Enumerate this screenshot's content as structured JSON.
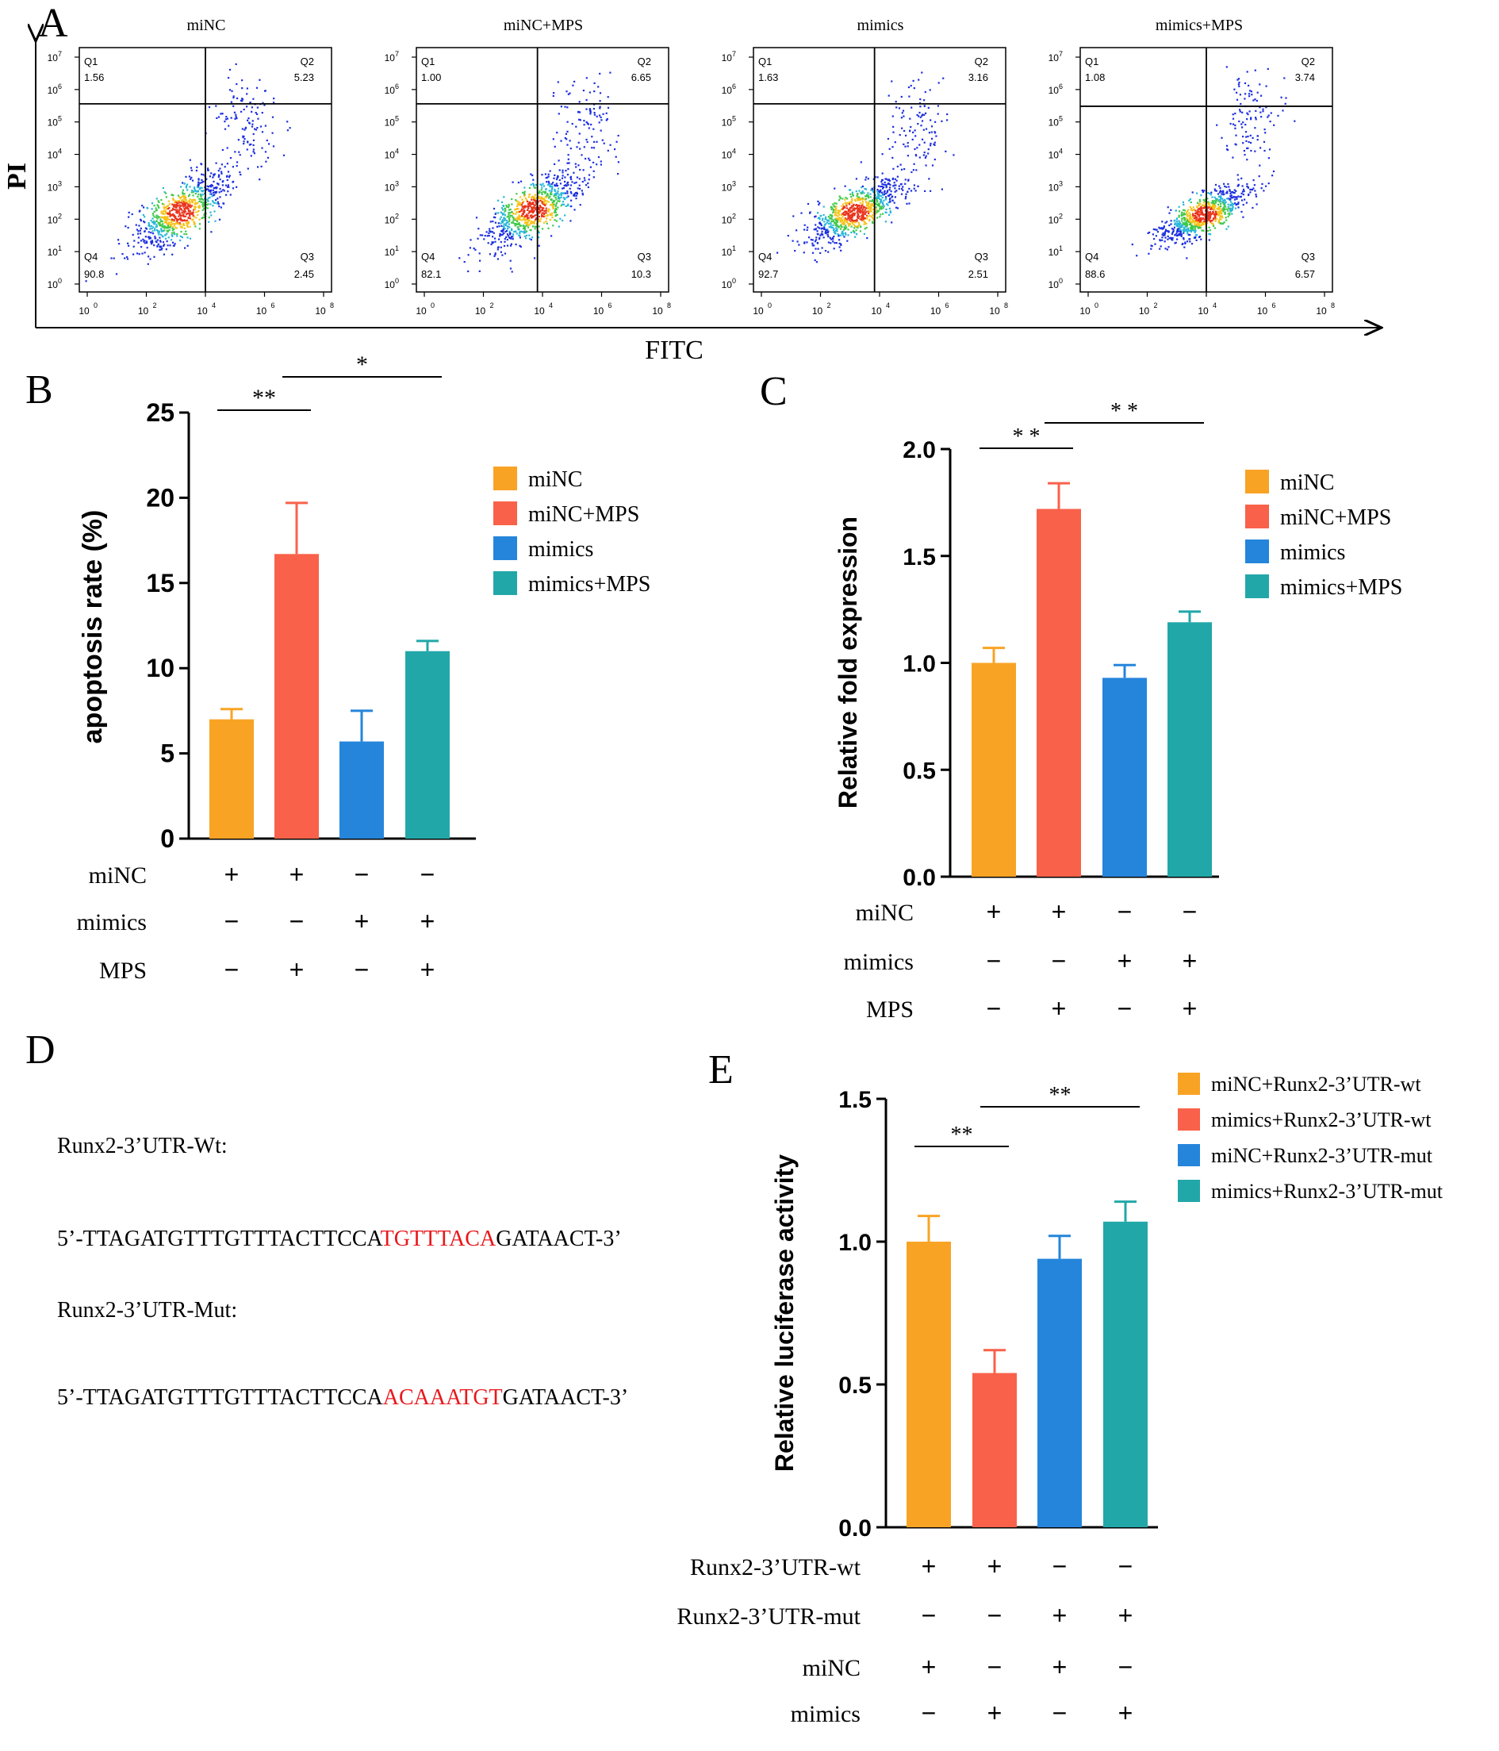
{
  "panels": {
    "A": "A",
    "B": "B",
    "C": "C",
    "D": "D",
    "E": "E"
  },
  "colors": {
    "orange": "#f9a325",
    "red": "#f9614a",
    "blue": "#2585db",
    "teal": "#22a7a9",
    "seq_highlight": "#e8181c"
  },
  "flow": {
    "y_axis_label": "PI",
    "x_axis_label": "FITC",
    "x_ticks": [
      "10",
      "10",
      "10",
      "10",
      "10"
    ],
    "x_tick_exp": [
      "0",
      "2",
      "4",
      "6",
      "8"
    ],
    "y_tick_exp": [
      "0",
      "1",
      "2",
      "3",
      "4",
      "5",
      "6",
      "7"
    ],
    "plots": [
      {
        "title": "miNC",
        "q1_label": "Q1",
        "q1": "1.56",
        "q2_label": "Q2",
        "q2": "5.23",
        "q3_label": "Q3",
        "q3": "2.45",
        "q4_label": "Q4",
        "q4": "90.8"
      },
      {
        "title": "miNC+MPS",
        "q1_label": "Q1",
        "q1": "1.00",
        "q2_label": "Q2",
        "q2": "6.65",
        "q3_label": "Q3",
        "q3": "10.3",
        "q4_label": "Q4",
        "q4": "82.1"
      },
      {
        "title": "mimics",
        "q1_label": "Q1",
        "q1": "1.63",
        "q2_label": "Q2",
        "q2": "3.16",
        "q3_label": "Q3",
        "q3": "2.51",
        "q4_label": "Q4",
        "q4": "92.7"
      },
      {
        "title": "mimics+MPS",
        "q1_label": "Q1",
        "q1": "1.08",
        "q2_label": "Q2",
        "q2": "3.74",
        "q3_label": "Q3",
        "q3": "6.57",
        "q4_label": "Q4",
        "q4": "88.6"
      }
    ]
  },
  "sequences": {
    "wt_label": "Runx2-3’UTR-Wt:",
    "wt_prefix": "5’-TTAGATGTTTGTTTACTTCCA",
    "wt_highlight": "TGTTTACA",
    "wt_suffix": "GATAACT-3’",
    "mut_label": "Runx2-3’UTR-Mut:",
    "mut_prefix": "5’-TTAGATGTTTGTTTACTTCCA",
    "mut_highlight": "ACAAATGT",
    "mut_suffix": "GATAACT-3’"
  },
  "chart_data": [
    {
      "panel": "B",
      "type": "bar",
      "title": "",
      "xlabel": "",
      "ylabel": "apoptosis rate (%)",
      "ylim": [
        0,
        25
      ],
      "yticks": [
        "0",
        "5",
        "10",
        "15",
        "20",
        "25"
      ],
      "categories": [
        "miNC",
        "miNC+MPS",
        "mimics",
        "mimics+MPS"
      ],
      "values": [
        7.0,
        16.7,
        5.7,
        11.0
      ],
      "errors": [
        0.6,
        3.0,
        1.8,
        0.6
      ],
      "colors": [
        "#f9a325",
        "#f9614a",
        "#2585db",
        "#22a7a9"
      ],
      "legend": [
        "miNC",
        "miNC+MPS",
        "mimics",
        "mimics+MPS"
      ],
      "significance": [
        {
          "from": 0,
          "to": 1,
          "label": "**"
        },
        {
          "from": 1,
          "to": 3,
          "label": "*"
        }
      ],
      "conditions": [
        {
          "label": "miNC",
          "signs": [
            "+",
            "+",
            "−",
            "−"
          ]
        },
        {
          "label": "mimics",
          "signs": [
            "−",
            "−",
            "+",
            "+"
          ]
        },
        {
          "label": "MPS",
          "signs": [
            "−",
            "+",
            "−",
            "+"
          ]
        }
      ]
    },
    {
      "panel": "C",
      "type": "bar",
      "title": "",
      "xlabel": "",
      "ylabel": "Relative fold expression",
      "ylim": [
        0,
        2.0
      ],
      "yticks": [
        "0.0",
        "0.5",
        "1.0",
        "1.5",
        "2.0"
      ],
      "categories": [
        "miNC",
        "miNC+MPS",
        "mimics",
        "mimics+MPS"
      ],
      "values": [
        1.0,
        1.72,
        0.93,
        1.19
      ],
      "errors": [
        0.07,
        0.12,
        0.06,
        0.05
      ],
      "colors": [
        "#f9a325",
        "#f9614a",
        "#2585db",
        "#22a7a9"
      ],
      "legend": [
        "miNC",
        "miNC+MPS",
        "mimics",
        "mimics+MPS"
      ],
      "significance": [
        {
          "from": 0,
          "to": 1,
          "label": "* *"
        },
        {
          "from": 1,
          "to": 3,
          "label": "* *"
        }
      ],
      "conditions": [
        {
          "label": "miNC",
          "signs": [
            "+",
            "+",
            "−",
            "−"
          ]
        },
        {
          "label": "mimics",
          "signs": [
            "−",
            "−",
            "+",
            "+"
          ]
        },
        {
          "label": "MPS",
          "signs": [
            "−",
            "+",
            "−",
            "+"
          ]
        }
      ]
    },
    {
      "panel": "E",
      "type": "bar",
      "title": "",
      "xlabel": "",
      "ylabel": "Relative luciferase activity",
      "ylim": [
        0,
        1.5
      ],
      "yticks": [
        "0.0",
        "0.5",
        "1.0",
        "1.5"
      ],
      "categories": [
        "miNC+Runx2-3’UTR-wt",
        "mimics+Runx2-3’UTR-wt",
        "miNC+Runx2-3’UTR-mut",
        "mimics+Runx2-3’UTR-mut"
      ],
      "values": [
        1.0,
        0.54,
        0.94,
        1.07
      ],
      "errors": [
        0.09,
        0.08,
        0.08,
        0.07
      ],
      "colors": [
        "#f9a325",
        "#f9614a",
        "#2585db",
        "#22a7a9"
      ],
      "legend": [
        "miNC+Runx2-3’UTR-wt",
        "mimics+Runx2-3’UTR-wt",
        "miNC+Runx2-3’UTR-mut",
        "mimics+Runx2-3’UTR-mut"
      ],
      "significance": [
        {
          "from": 0,
          "to": 1,
          "label": "**"
        },
        {
          "from": 1,
          "to": 3,
          "label": "**"
        }
      ],
      "conditions": [
        {
          "label": "Runx2-3’UTR-wt",
          "signs": [
            "+",
            "+",
            "−",
            "−"
          ]
        },
        {
          "label": "Runx2-3’UTR-mut",
          "signs": [
            "−",
            "−",
            "+",
            "+"
          ]
        },
        {
          "label": "miNC",
          "signs": [
            "+",
            "−",
            "+",
            "−"
          ]
        },
        {
          "label": "mimics",
          "signs": [
            "−",
            "+",
            "−",
            "+"
          ]
        }
      ]
    }
  ]
}
